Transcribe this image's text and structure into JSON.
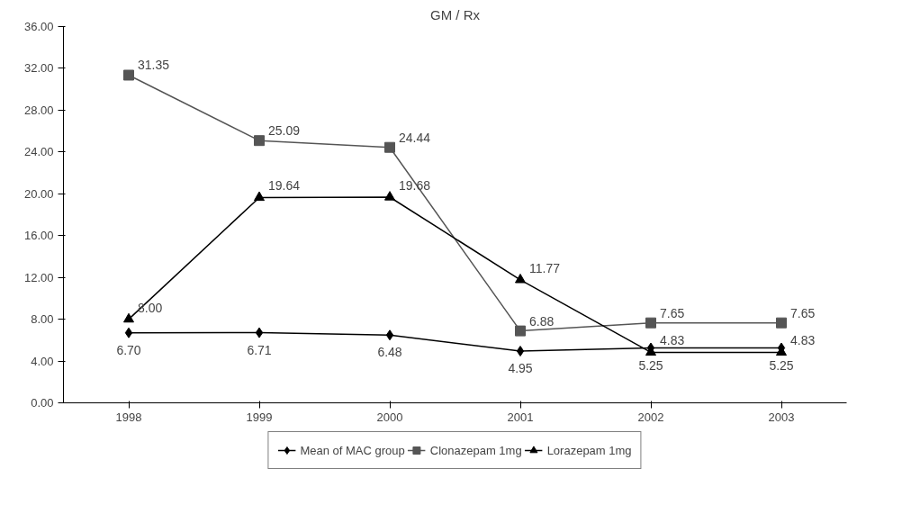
{
  "chart_data": {
    "type": "line",
    "title": "GM / Rx",
    "categories": [
      "1998",
      "1999",
      "2000",
      "2001",
      "2002",
      "2003"
    ],
    "series": [
      {
        "name": "Mean of MAC group",
        "color": "#000000",
        "marker": "diamond",
        "values": [
          6.7,
          6.71,
          6.48,
          4.95,
          5.25,
          5.25
        ],
        "value_labels": [
          "6.70",
          "6.71",
          "6.48",
          "4.95",
          "5.25",
          "5.25"
        ]
      },
      {
        "name": "Clonazepam 1mg",
        "color": "#555555",
        "marker": "square",
        "values": [
          31.35,
          25.09,
          24.44,
          6.88,
          7.65,
          7.65
        ],
        "value_labels": [
          "31.35",
          "25.09",
          "24.44",
          "6.88",
          "7.65",
          "7.65"
        ]
      },
      {
        "name": "Lorazepam 1mg",
        "color": "#000000",
        "marker": "triangle",
        "values": [
          8.0,
          19.64,
          19.68,
          11.77,
          4.83,
          4.83
        ],
        "value_labels": [
          "8.00",
          "19.64",
          "19.68",
          "11.77",
          "4.83",
          "4.83"
        ]
      }
    ],
    "ylim": [
      0,
      36
    ],
    "yticks": [
      {
        "value": 0,
        "label": "0.00"
      },
      {
        "value": 4,
        "label": "4.00"
      },
      {
        "value": 8,
        "label": "8.00"
      },
      {
        "value": 12,
        "label": "12.00"
      },
      {
        "value": 16,
        "label": "16.00"
      },
      {
        "value": 20,
        "label": "20.00"
      },
      {
        "value": 24,
        "label": "24.00"
      },
      {
        "value": 28,
        "label": "28.00"
      },
      {
        "value": 32,
        "label": "32.00"
      },
      {
        "value": 36,
        "label": "36.00"
      }
    ],
    "legend": "bottom",
    "grid": false,
    "line_style": "solid"
  }
}
